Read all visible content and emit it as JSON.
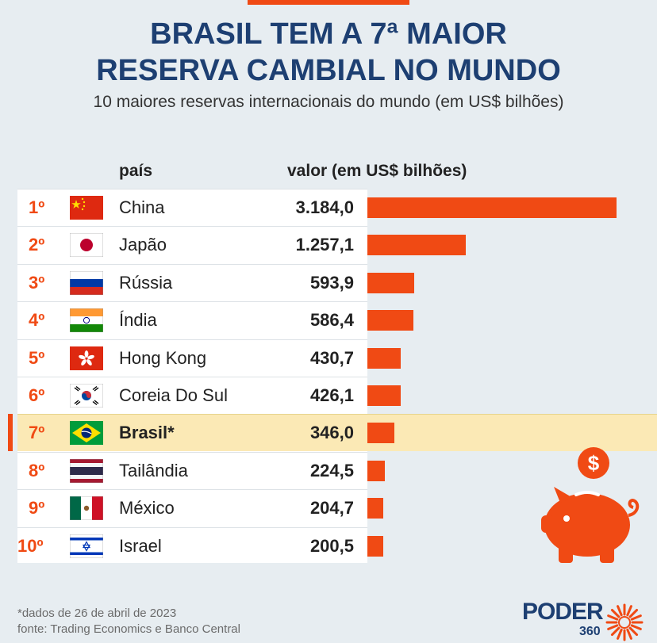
{
  "title_line1": "BRASIL TEM A 7ª MAIOR",
  "title_line2": "RESERVA CAMBIAL NO MUNDO",
  "subtitle": "10 maiores reservas internacionais do mundo (em US$ bilhões)",
  "header": {
    "country": "país",
    "value": "valor (em US$ bilhões)"
  },
  "chart_data": {
    "type": "bar",
    "orientation": "horizontal",
    "title": "BRASIL TEM A 7ª MAIOR RESERVA CAMBIAL NO MUNDO",
    "subtitle": "10 maiores reservas internacionais do mundo (em US$ bilhões)",
    "categories": [
      "China",
      "Japão",
      "Rússia",
      "Índia",
      "Hong Kong",
      "Coreia Do Sul",
      "Brasil*",
      "Tailândia",
      "México",
      "Israel"
    ],
    "values": [
      3184.0,
      1257.1,
      593.9,
      586.4,
      430.7,
      426.1,
      346.0,
      224.5,
      204.7,
      200.5
    ],
    "value_labels": [
      "3.184,0",
      "1.257,1",
      "593,9",
      "586,4",
      "430,7",
      "426,1",
      "346,0",
      "224,5",
      "204,7",
      "200,5"
    ],
    "ranks": [
      "1º",
      "2º",
      "3º",
      "4º",
      "5º",
      "6º",
      "7º",
      "8º",
      "9º",
      "10º"
    ],
    "flags": [
      "china-flag",
      "japan-flag",
      "russia-flag",
      "india-flag",
      "hong-kong-flag",
      "south-korea-flag",
      "brazil-flag",
      "thailand-flag",
      "mexico-flag",
      "israel-flag"
    ],
    "highlight_index": 6,
    "bar_color": "#f04a14",
    "highlight_color": "#fbe9b5",
    "xlim": [
      0,
      3184.0
    ]
  },
  "footnote": "*dados de 26 de abril de 2023",
  "source": "fonte: Trading Economics e Banco Central",
  "brand": {
    "name": "PODER",
    "sub": "360"
  },
  "colors": {
    "accent": "#f04a14",
    "title": "#1d3f72",
    "background": "#e7edf1"
  }
}
